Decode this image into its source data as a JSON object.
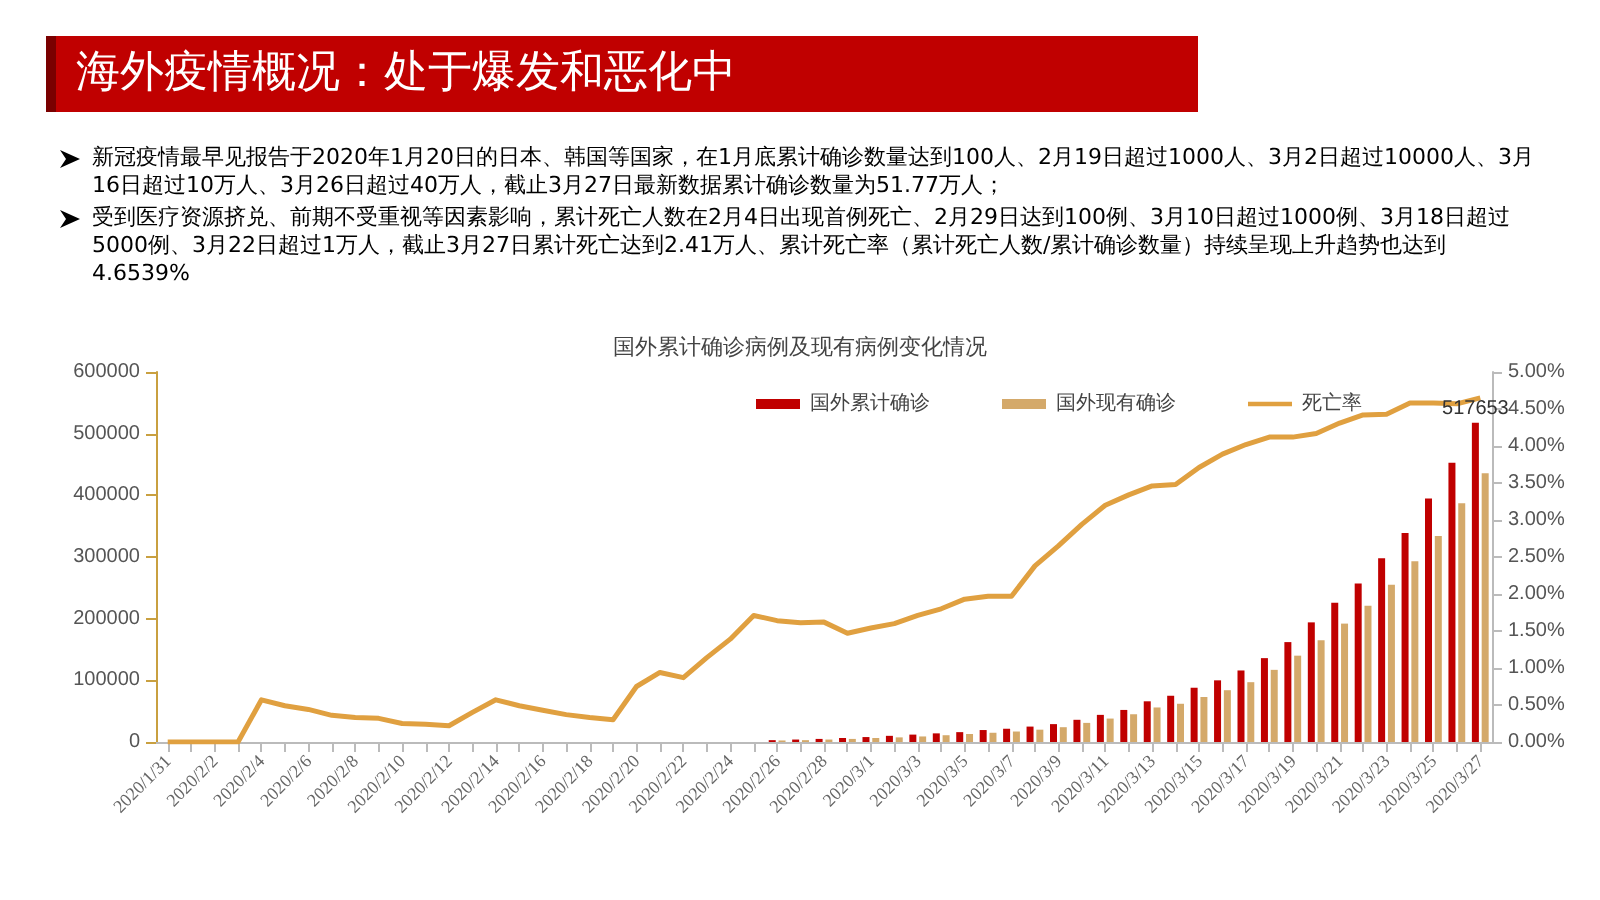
{
  "chart_data": {
    "type": "bar",
    "title": "海外疫情概况：处于爆发和恶化中",
    "subtitle": "国外累计确诊病例及现有病例变化情况",
    "annotations": [
      "新冠疫情最早见报告于2020年1月20日的日本、韩国等国家，在1月底累计确诊数量达到100人、2月19日超过1000人、3月2日超过10000人、3月16日超过10万人、3月26日超过40万人，截止3月27日最新数据累计确诊数量为51.77万人；",
      "受到医疗资源挤兑、前期不受重视等因素影响，累计死亡人数在2月4日出现首例死亡、2月29日达到100例、3月10日超过1000例、3月18日超过5000例、3月22日超过1万人，截止3月27日累计死亡达到2.41万人、累计死亡率（累计死亡人数/累计确诊数量）持续呈现上升趋势也达到4.6539%"
    ],
    "categories": [
      "2020/1/31",
      null,
      "2020/2/2",
      null,
      "2020/2/4",
      null,
      "2020/2/6",
      null,
      "2020/2/8",
      null,
      "2020/2/10",
      null,
      "2020/2/12",
      null,
      "2020/2/14",
      null,
      "2020/2/16",
      null,
      "2020/2/18",
      null,
      "2020/2/20",
      null,
      "2020/2/22",
      null,
      "2020/2/24",
      null,
      "2020/2/26",
      null,
      "2020/2/28",
      null,
      "2020/3/1",
      null,
      "2020/3/3",
      null,
      "2020/3/5",
      null,
      "2020/3/7",
      null,
      "2020/3/9",
      null,
      "2020/3/11",
      null,
      "2020/3/13",
      null,
      "2020/3/15",
      null,
      "2020/3/17",
      null,
      "2020/3/19",
      null,
      "2020/3/21",
      null,
      "2020/3/23",
      null,
      "2020/3/25",
      null,
      "2020/3/27"
    ],
    "series": [
      {
        "name": "国外累计确诊",
        "color": "#c00000",
        "values": [
          null,
          null,
          null,
          null,
          null,
          null,
          null,
          null,
          null,
          null,
          null,
          null,
          null,
          null,
          null,
          null,
          null,
          null,
          null,
          null,
          null,
          null,
          null,
          null,
          null,
          null,
          3000,
          4000,
          5000,
          6500,
          8000,
          10000,
          12000,
          14000,
          16000,
          19400,
          21500,
          25000,
          29000,
          36000,
          44000,
          52000,
          66000,
          75000,
          88000,
          100000,
          116000,
          136000,
          162000,
          194000,
          226000,
          257000,
          298000,
          339000,
          395000,
          453000,
          517653
        ],
        "value_labels": [
          null,
          null,
          null,
          null,
          null,
          null,
          null,
          null,
          null,
          null,
          null,
          null,
          null,
          null,
          null,
          null,
          null,
          null,
          null,
          null,
          null,
          null,
          null,
          null,
          null,
          null,
          null,
          null,
          null,
          null,
          null,
          null,
          null,
          null,
          null,
          null,
          null,
          null,
          null,
          null,
          null,
          null,
          null,
          null,
          null,
          null,
          null,
          null,
          null,
          null,
          null,
          null,
          null,
          null,
          null,
          null,
          "517653"
        ]
      },
      {
        "name": "国外现有确诊",
        "color": "#d4a96a",
        "values": [
          null,
          null,
          null,
          null,
          null,
          null,
          null,
          null,
          null,
          null,
          null,
          null,
          null,
          null,
          null,
          null,
          null,
          null,
          null,
          null,
          null,
          null,
          null,
          null,
          null,
          null,
          2500,
          3000,
          4000,
          5000,
          6500,
          7500,
          9000,
          11000,
          13000,
          15000,
          17000,
          20000,
          24000,
          31000,
          38000,
          45000,
          56000,
          62000,
          73000,
          84000,
          97000,
          117000,
          140000,
          165000,
          192000,
          221000,
          255000,
          293000,
          334000,
          387000,
          436000
        ]
      },
      {
        "name": "死亡率",
        "type": "line",
        "axis": "y2",
        "color": "#e0a040",
        "marker": "none",
        "values": [
          0,
          0,
          0,
          0,
          0.57,
          0.49,
          0.44,
          0.36,
          0.33,
          0.32,
          0.25,
          0.24,
          0.22,
          0.4,
          0.57,
          0.49,
          0.43,
          0.37,
          0.33,
          0.3,
          0.75,
          0.94,
          0.87,
          1.14,
          1.39,
          1.71,
          1.64,
          1.61,
          1.62,
          1.47,
          1.54,
          1.6,
          1.71,
          1.8,
          1.93,
          1.97,
          1.97,
          2.38,
          2.65,
          2.94,
          3.2,
          3.34,
          3.46,
          3.48,
          3.71,
          3.89,
          4.02,
          4.12,
          4.12,
          4.17,
          4.31,
          4.42,
          4.43,
          4.58,
          4.58,
          4.57,
          4.65
        ]
      }
    ],
    "ylim": [
      0,
      600000
    ],
    "yticks": [
      0,
      100000,
      200000,
      300000,
      400000,
      500000,
      600000
    ],
    "y2lim": [
      0,
      5
    ],
    "y2ticks": [
      {
        "value": 0,
        "label": "0.00%"
      },
      {
        "value": 0.5,
        "label": "0.50%"
      },
      {
        "value": 1,
        "label": "1.00%"
      },
      {
        "value": 1.5,
        "label": "1.50%"
      },
      {
        "value": 2,
        "label": "2.00%"
      },
      {
        "value": 2.5,
        "label": "2.50%"
      },
      {
        "value": 3,
        "label": "3.00%"
      },
      {
        "value": 3.5,
        "label": "3.50%"
      },
      {
        "value": 4,
        "label": "4.00%"
      },
      {
        "value": 4.5,
        "label": "4.50%"
      },
      {
        "value": 5,
        "label": "5.00%"
      }
    ],
    "grid": false,
    "legend": "top right"
  }
}
